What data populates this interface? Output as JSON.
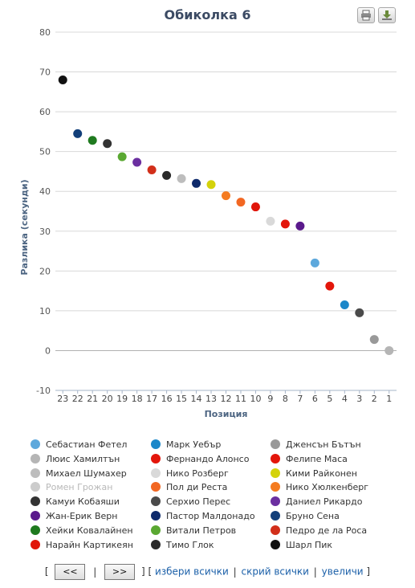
{
  "chart_data": {
    "type": "scatter",
    "title": "Обиколка 6",
    "xlabel": "Позиция",
    "ylabel": "Разлика (секунди)",
    "ylim": [
      -10,
      80
    ],
    "yticks": [
      -10,
      0,
      10,
      20,
      30,
      40,
      50,
      60,
      70,
      80
    ],
    "x_categories": [
      "23",
      "22",
      "21",
      "20",
      "19",
      "18",
      "17",
      "16",
      "15",
      "14",
      "13",
      "12",
      "11",
      "10",
      "9",
      "8",
      "7",
      "6",
      "5",
      "4",
      "3",
      "2",
      "1"
    ],
    "grid": true,
    "legend_placement": "bottom",
    "series": [
      {
        "name": "Себастиан Фетел",
        "color": "#5da8dc",
        "position": "6",
        "value": 22.0
      },
      {
        "name": "Марк Уебър",
        "color": "#1b87c9",
        "position": "4",
        "value": 11.5
      },
      {
        "name": "Дженсън Бътън",
        "color": "#999999",
        "position": "2",
        "value": 2.8
      },
      {
        "name": "Люис Хамилтън",
        "color": "#b5b5b5",
        "position": "1",
        "value": 0.0
      },
      {
        "name": "Фернандо Алонсо",
        "color": "#e3160b",
        "position": "8",
        "value": 31.8
      },
      {
        "name": "Фелипе Маса",
        "color": "#e3160b",
        "position": "5",
        "value": 16.2
      },
      {
        "name": "Михаел Шумахер",
        "color": "#bdbdbd",
        "position": "15",
        "value": 43.2
      },
      {
        "name": "Нико Розберг",
        "color": "#d9d9d9",
        "position": "9",
        "value": 32.5
      },
      {
        "name": "Кими Райконен",
        "color": "#d4d20a",
        "position": "13",
        "value": 41.7
      },
      {
        "name": "Ромен Грожан",
        "color": "#c8c8c8",
        "position": "",
        "value": null,
        "hidden": true
      },
      {
        "name": "Пол ди Реста",
        "color": "#f26722",
        "position": "11",
        "value": 37.3
      },
      {
        "name": "Нико Хюлкенберг",
        "color": "#f47b20",
        "position": "12",
        "value": 38.9
      },
      {
        "name": "Камуи Кобаяши",
        "color": "#333333",
        "position": "20",
        "value": 52.0
      },
      {
        "name": "Серхио Перес",
        "color": "#4a4a4a",
        "position": "3",
        "value": 9.5
      },
      {
        "name": "Даниел Рикардо",
        "color": "#6b2fa0",
        "position": "18",
        "value": 47.3
      },
      {
        "name": "Жан-Ерик Верн",
        "color": "#5a1a8c",
        "position": "7",
        "value": 31.3
      },
      {
        "name": "Пастор Малдонадо",
        "color": "#0e2a6b",
        "position": "14",
        "value": 42.0
      },
      {
        "name": "Бруно Сена",
        "color": "#123f7a",
        "position": "22",
        "value": 54.5
      },
      {
        "name": "Хейки Ковалайнен",
        "color": "#1f7a1f",
        "position": "21",
        "value": 52.8
      },
      {
        "name": "Витали Петров",
        "color": "#5aa832",
        "position": "19",
        "value": 48.7
      },
      {
        "name": "Педро де ла Роса",
        "color": "#d22f1a",
        "position": "17",
        "value": 45.4
      },
      {
        "name": "Нарайн Картикеян",
        "color": "#e0150a",
        "position": "10",
        "value": 36.1
      },
      {
        "name": "Тимо Глок",
        "color": "#2a2a2a",
        "position": "16",
        "value": 44.0
      },
      {
        "name": "Шарл Пик",
        "color": "#111111",
        "position": "23",
        "value": 68.0
      }
    ]
  },
  "toolbar": {
    "print_icon": "print-icon",
    "download_icon": "download-icon"
  },
  "nav": {
    "prev_label": "<<",
    "next_label": ">>",
    "select_all": "избери всички",
    "hide_all": "скрий всички",
    "zoom": "увеличи",
    "bracket_open": "[",
    "bracket_close": "]",
    "pipe": "|"
  }
}
